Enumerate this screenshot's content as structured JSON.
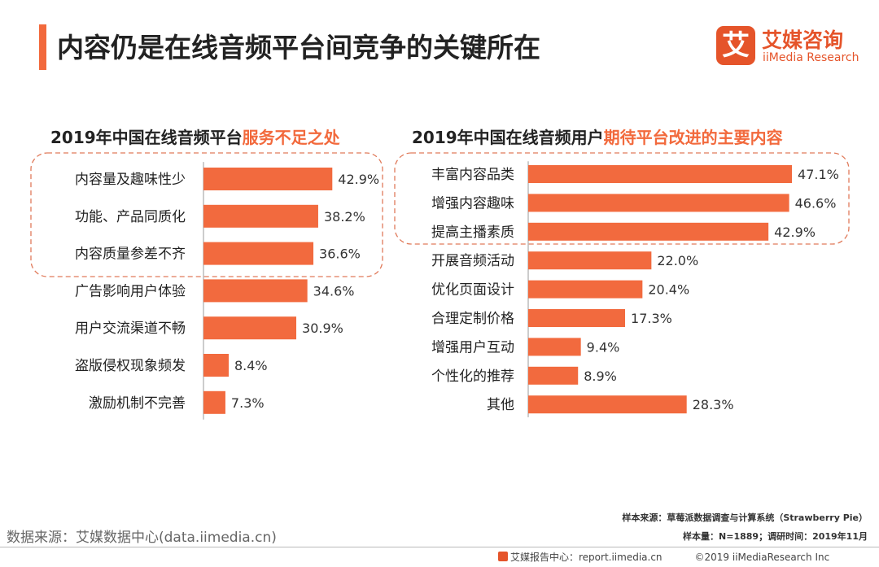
{
  "page": {
    "title": "内容仍是在线音频平台间竞争的关键所在",
    "logo_cn": "艾媒咨询",
    "logo_en": "iiMedia Research",
    "logo_mark": "艾"
  },
  "colors": {
    "accent": "#F2693C",
    "bar": "#F26A3E",
    "dash": "#E07A5A"
  },
  "chart_data": [
    {
      "type": "bar",
      "orientation": "horizontal",
      "title_prefix": "2019年中国在线音频平台",
      "title_highlight": "服务不足之处",
      "categories": [
        "内容量及趣味性少",
        "功能、产品同质化",
        "内容质量参差不齐",
        "广告影响用户体验",
        "用户交流渠道不畅",
        "盗版侵权现象频发",
        "激励机制不完善"
      ],
      "values": [
        42.9,
        38.2,
        36.6,
        34.6,
        30.9,
        8.4,
        7.3
      ],
      "labels": [
        "42.9%",
        "38.2%",
        "36.6%",
        "34.6%",
        "30.9%",
        "8.4%",
        "7.3%"
      ],
      "highlighted_top": 3,
      "unit": "%"
    },
    {
      "type": "bar",
      "orientation": "horizontal",
      "title_prefix": "2019年中国在线音频用户",
      "title_highlight": "期待平台改进的主要内容",
      "categories": [
        "丰富内容品类",
        "增强内容趣味",
        "提高主播素质",
        "开展音频活动",
        "优化页面设计",
        "合理定制价格",
        "增强用户互动",
        "个性化的推荐",
        "其他"
      ],
      "values": [
        47.1,
        46.6,
        42.9,
        22.0,
        20.4,
        17.3,
        9.4,
        8.9,
        28.3
      ],
      "labels": [
        "47.1%",
        "46.6%",
        "42.9%",
        "22.0%",
        "20.4%",
        "17.3%",
        "9.4%",
        "8.9%",
        "28.3%"
      ],
      "highlighted_top": 3,
      "unit": "%"
    }
  ],
  "footer": {
    "source": "数据来源：艾媒数据中心(data.iimedia.cn)",
    "sample_source": "样本来源：草莓派数据调查与计算系统（Strawberry Pie）",
    "sample_size": "样本量：N=1889；调研时间：2019年11月",
    "report_center": "艾媒报告中心：report.iimedia.cn",
    "copyright": "©2019  iiMediaResearch Inc"
  }
}
